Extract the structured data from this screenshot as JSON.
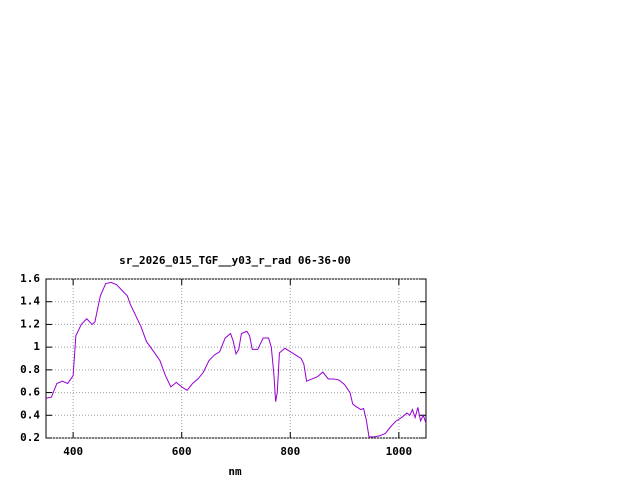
{
  "chart_data": {
    "type": "line",
    "title": "sr_2026_015_TGF__y03_r_rad 06-36-00",
    "x_label": "nm",
    "x": [
      350,
      360,
      370,
      380,
      390,
      400,
      405,
      415,
      425,
      435,
      440,
      450,
      460,
      470,
      480,
      490,
      500,
      505,
      515,
      525,
      535,
      550,
      560,
      570,
      580,
      590,
      600,
      610,
      620,
      630,
      640,
      650,
      660,
      670,
      680,
      690,
      695,
      700,
      705,
      710,
      720,
      725,
      730,
      740,
      750,
      760,
      765,
      770,
      773,
      776,
      780,
      790,
      800,
      810,
      820,
      825,
      830,
      840,
      850,
      860,
      870,
      880,
      890,
      900,
      910,
      915,
      920,
      930,
      935,
      940,
      945,
      955,
      965,
      975,
      985,
      995,
      1005,
      1015,
      1020,
      1025,
      1030,
      1035,
      1040,
      1045,
      1050
    ],
    "series": [
      {
        "color": "#9400d3",
        "values": [
          0.55,
          0.56,
          0.68,
          0.7,
          0.68,
          0.75,
          1.1,
          1.2,
          1.25,
          1.2,
          1.22,
          1.45,
          1.56,
          1.57,
          1.55,
          1.5,
          1.45,
          1.38,
          1.28,
          1.18,
          1.05,
          0.95,
          0.88,
          0.75,
          0.65,
          0.69,
          0.65,
          0.62,
          0.68,
          0.72,
          0.78,
          0.88,
          0.93,
          0.96,
          1.08,
          1.12,
          1.05,
          0.94,
          0.98,
          1.12,
          1.14,
          1.1,
          0.98,
          0.98,
          1.08,
          1.08,
          1.0,
          0.75,
          0.52,
          0.6,
          0.95,
          0.99,
          0.96,
          0.93,
          0.9,
          0.85,
          0.7,
          0.72,
          0.74,
          0.78,
          0.72,
          0.72,
          0.71,
          0.67,
          0.6,
          0.5,
          0.48,
          0.45,
          0.46,
          0.36,
          0.21,
          0.21,
          0.22,
          0.24,
          0.3,
          0.35,
          0.38,
          0.42,
          0.4,
          0.45,
          0.38,
          0.47,
          0.35,
          0.4,
          0.33
        ]
      }
    ],
    "xlim": [
      350,
      1050
    ],
    "xticks": [
      400,
      600,
      800,
      1000
    ],
    "ylim": [
      0.2,
      1.6
    ],
    "yticks": [
      0.2,
      0.4,
      0.6,
      0.8,
      1,
      1.2,
      1.4,
      1.6
    ],
    "grid": true
  }
}
